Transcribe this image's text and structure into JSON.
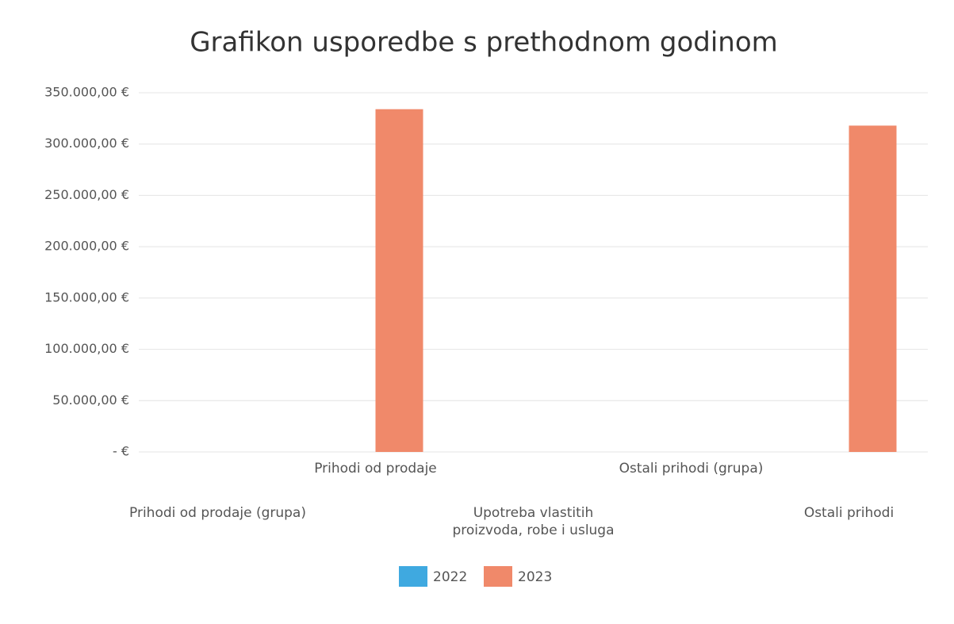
{
  "chart_data": {
    "type": "bar",
    "title": "Grafikon usporedbe s prethodnom godinom",
    "categories": [
      "Prihodi od prodaje (grupa)",
      "Prihodi od prodaje",
      "Upotreba vlastitih proizvoda, robe i usluga",
      "Ostali prihodi (grupa)",
      "Ostali prihodi"
    ],
    "series": [
      {
        "name": "2022",
        "color": "#3fa9e0",
        "values": [
          0,
          0,
          0,
          0,
          0
        ]
      },
      {
        "name": "2023",
        "color": "#f0896a",
        "values": [
          0,
          334000,
          0,
          0,
          318000
        ]
      }
    ],
    "ylim": [
      0,
      350000
    ],
    "yticks": [
      {
        "value": 0,
        "label": "-  €"
      },
      {
        "value": 50000,
        "label": "50.000,00 €"
      },
      {
        "value": 100000,
        "label": "100.000,00 €"
      },
      {
        "value": 150000,
        "label": "150.000,00 €"
      },
      {
        "value": 200000,
        "label": "200.000,00 €"
      },
      {
        "value": 250000,
        "label": "250.000,00 €"
      },
      {
        "value": 300000,
        "label": "300.000,00 €"
      },
      {
        "value": 350000,
        "label": "350.000,00 €"
      }
    ],
    "grid": true,
    "legend": "bottom"
  }
}
